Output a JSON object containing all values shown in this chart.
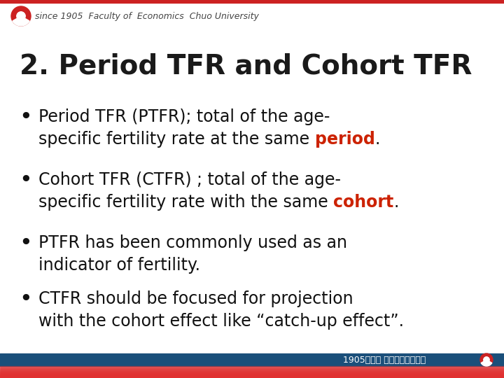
{
  "title": "2. Period TFR and Cohort TFR",
  "title_fontsize": 28,
  "title_color": "#1a1a1a",
  "bg_color": "#ffffff",
  "header_text": "since 1905  Faculty of  Economics  Chuo University",
  "header_fontsize": 9,
  "header_color": "#444444",
  "footer_text": "1905年創立 中央大学経済学部",
  "footer_fontsize": 9,
  "top_bar_color": "#cc2222",
  "bottom_bar1_color": "#1a4f7a",
  "bottom_bar2_color": "#e03030",
  "text_color": "#111111",
  "red_color": "#cc2200",
  "bullet_fontsize": 17,
  "bullet_items": [
    {
      "line1": "Period TFR (PTFR); total of the age-",
      "line2_pre": "specific fertility rate at the same ",
      "line2_highlight": "period",
      "line2_post": "."
    },
    {
      "line1": "Cohort TFR (CTFR) ; total of the age-",
      "line2_pre": "specific fertility rate with the same ",
      "line2_highlight": "cohort",
      "line2_post": "."
    },
    {
      "line1": "PTFR has been commonly used as an",
      "line2_pre": "indicator of fertility.",
      "line2_highlight": "",
      "line2_post": ""
    },
    {
      "line1": "CTFR should be focused for projection",
      "line2_pre": "with the cohort effect like “catch-up effect”.",
      "line2_highlight": "",
      "line2_post": ""
    }
  ]
}
